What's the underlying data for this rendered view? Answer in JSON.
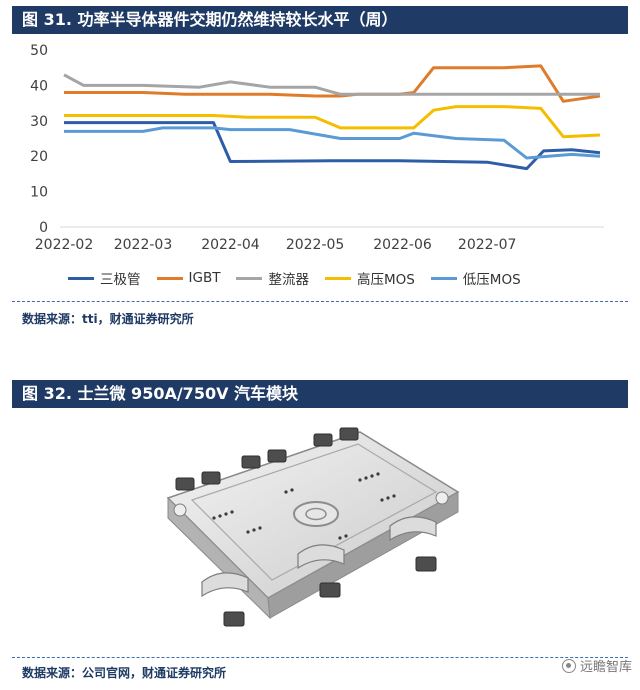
{
  "figure1": {
    "title": "图 31. 功率半导体器件交期仍然维持较长水平（周）",
    "source": "数据来源：tti，财通证券研究所"
  },
  "figure2": {
    "title": "图 32. 士兰微 950A/750V 汽车模块",
    "source": "数据来源：公司官网，财通证券研究所"
  },
  "watermark": "远瞻智库",
  "chart_data": {
    "type": "line",
    "title": "",
    "xlabel": "",
    "ylabel": "",
    "ylim": [
      0,
      50
    ],
    "yticks": [
      0,
      10,
      20,
      30,
      40,
      50
    ],
    "xlim": [
      "2022-02-01",
      "2022-08-10"
    ],
    "xticks": [
      {
        "label": "2022-02",
        "date": "2022-02-01"
      },
      {
        "label": "2022-03",
        "date": "2022-03-01"
      },
      {
        "label": "2022-04",
        "date": "2022-04-01"
      },
      {
        "label": "2022-05",
        "date": "2022-05-01"
      },
      {
        "label": "2022-06",
        "date": "2022-06-01"
      },
      {
        "label": "2022-07",
        "date": "2022-07-01"
      }
    ],
    "grid": false,
    "legend_position": "bottom",
    "series": [
      {
        "name": "三极管",
        "color": "#2e5da8",
        "points": [
          [
            "2022-02-01",
            29.5
          ],
          [
            "2022-03-14",
            29.5
          ],
          [
            "2022-03-26",
            29.5
          ],
          [
            "2022-04-01",
            18.5
          ],
          [
            "2022-05-07",
            18.7
          ],
          [
            "2022-05-31",
            18.7
          ],
          [
            "2022-07-01",
            18.3
          ],
          [
            "2022-07-15",
            16.5
          ],
          [
            "2022-07-21",
            21.5
          ],
          [
            "2022-07-31",
            21.8
          ],
          [
            "2022-08-10",
            21.0
          ]
        ]
      },
      {
        "name": "IGBT",
        "color": "#e07b2a",
        "points": [
          [
            "2022-02-01",
            38.0
          ],
          [
            "2022-03-01",
            38.0
          ],
          [
            "2022-03-16",
            37.5
          ],
          [
            "2022-04-15",
            37.5
          ],
          [
            "2022-05-01",
            37.0
          ],
          [
            "2022-05-10",
            37.0
          ],
          [
            "2022-05-16",
            37.5
          ],
          [
            "2022-05-31",
            37.5
          ],
          [
            "2022-06-05",
            38.0
          ],
          [
            "2022-06-12",
            45.0
          ],
          [
            "2022-07-07",
            45.0
          ],
          [
            "2022-07-20",
            45.5
          ],
          [
            "2022-07-28",
            35.5
          ],
          [
            "2022-08-10",
            37.0
          ]
        ]
      },
      {
        "name": "整流器",
        "color": "#a5a5a5",
        "points": [
          [
            "2022-02-01",
            43.0
          ],
          [
            "2022-02-08",
            40.0
          ],
          [
            "2022-03-01",
            40.0
          ],
          [
            "2022-03-21",
            39.5
          ],
          [
            "2022-04-01",
            41.0
          ],
          [
            "2022-04-15",
            39.5
          ],
          [
            "2022-05-01",
            39.5
          ],
          [
            "2022-05-10",
            37.5
          ],
          [
            "2022-05-31",
            37.5
          ],
          [
            "2022-07-01",
            37.5
          ],
          [
            "2022-08-10",
            37.5
          ]
        ]
      },
      {
        "name": "高压MOS",
        "color": "#f5bd00",
        "points": [
          [
            "2022-02-01",
            31.5
          ],
          [
            "2022-03-26",
            31.5
          ],
          [
            "2022-04-07",
            31.0
          ],
          [
            "2022-05-01",
            31.0
          ],
          [
            "2022-05-10",
            28.0
          ],
          [
            "2022-06-05",
            28.0
          ],
          [
            "2022-06-12",
            33.0
          ],
          [
            "2022-06-20",
            34.0
          ],
          [
            "2022-07-07",
            34.0
          ],
          [
            "2022-07-20",
            33.5
          ],
          [
            "2022-07-28",
            25.5
          ],
          [
            "2022-08-10",
            26.0
          ]
        ]
      },
      {
        "name": "低压MOS",
        "color": "#5b9bd5",
        "points": [
          [
            "2022-02-01",
            27.0
          ],
          [
            "2022-03-01",
            27.0
          ],
          [
            "2022-03-08",
            28.0
          ],
          [
            "2022-03-26",
            28.0
          ],
          [
            "2022-04-01",
            27.5
          ],
          [
            "2022-04-22",
            27.5
          ],
          [
            "2022-05-10",
            25.0
          ],
          [
            "2022-05-31",
            25.0
          ],
          [
            "2022-06-05",
            26.5
          ],
          [
            "2022-06-20",
            25.0
          ],
          [
            "2022-07-07",
            24.5
          ],
          [
            "2022-07-15",
            19.5
          ],
          [
            "2022-07-31",
            20.5
          ],
          [
            "2022-08-10",
            20.0
          ]
        ]
      }
    ]
  }
}
